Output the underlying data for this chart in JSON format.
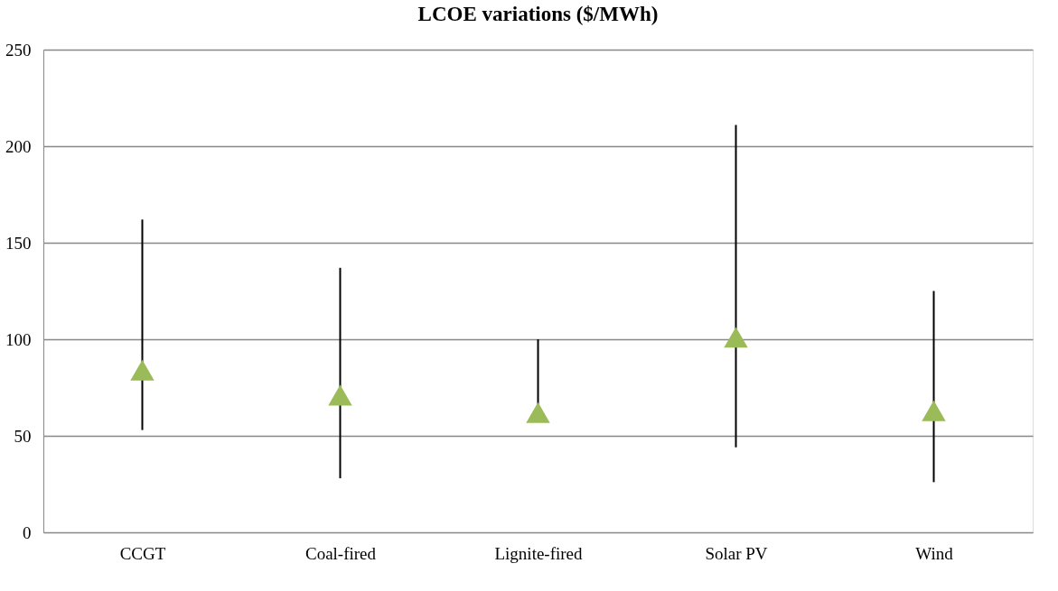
{
  "chart_data": {
    "type": "scatter",
    "title": "LCOE variations ($/MWh)",
    "categories": [
      "CCGT",
      "Coal-fired",
      "Lignite-fired",
      "Solar PV",
      "Wind"
    ],
    "series": [
      {
        "color": "#9bbb59",
        "values": [
          84,
          71,
          62,
          101,
          63
        ],
        "errors": [
          [
            53,
            162
          ],
          [
            28,
            137
          ],
          [
            58,
            100
          ],
          [
            44,
            211
          ],
          [
            26,
            125
          ]
        ]
      }
    ],
    "ylim": [
      0,
      250
    ],
    "yticks": [
      0,
      50,
      100,
      150,
      200,
      250
    ],
    "grid": "y",
    "marker": "triangle",
    "legend": false
  }
}
